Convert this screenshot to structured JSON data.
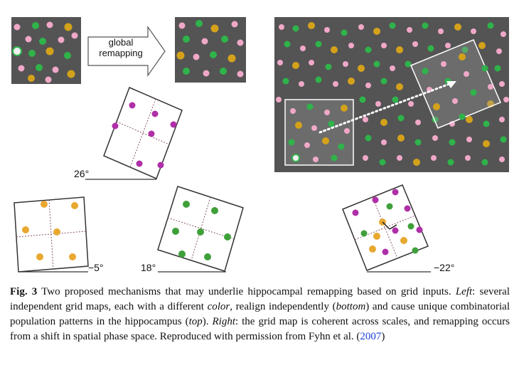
{
  "arrow": {
    "line1": "global",
    "line2": "remapping"
  },
  "angles": {
    "map_top": "26°",
    "map_bottom_left": "−5°",
    "map_bottom_middle": "18°",
    "map_bottom_right": "−22°"
  },
  "caption": {
    "fig_label": "Fig. 3",
    "text_1": " Two proposed mechanisms that may underlie hippocampal remapping based on grid inputs. ",
    "left_label": "Left",
    "text_2": ": several independent grid maps, each with a different ",
    "color_word": "color",
    "text_3": ", realign independently (",
    "bottom_word": "bottom",
    "text_4": ") and cause unique combinatorial population patterns in the hippocampus (",
    "top_word": "top",
    "text_5": "). ",
    "right_label": "Right",
    "text_6": ": the grid map is coherent across scales, and remapping occurs from a shift in spatial phase space. Reproduced with permission from Fyhn et al. (",
    "year_link": "2007",
    "text_7": ")"
  },
  "colors": {
    "field_bg": "#545454",
    "pink": "#f0a8c8",
    "green": "#2fb34a",
    "gold": "#d4a21a",
    "magenta": "#b02fa8",
    "orange": "#e8a830",
    "grid_green": "#3fa03a"
  }
}
